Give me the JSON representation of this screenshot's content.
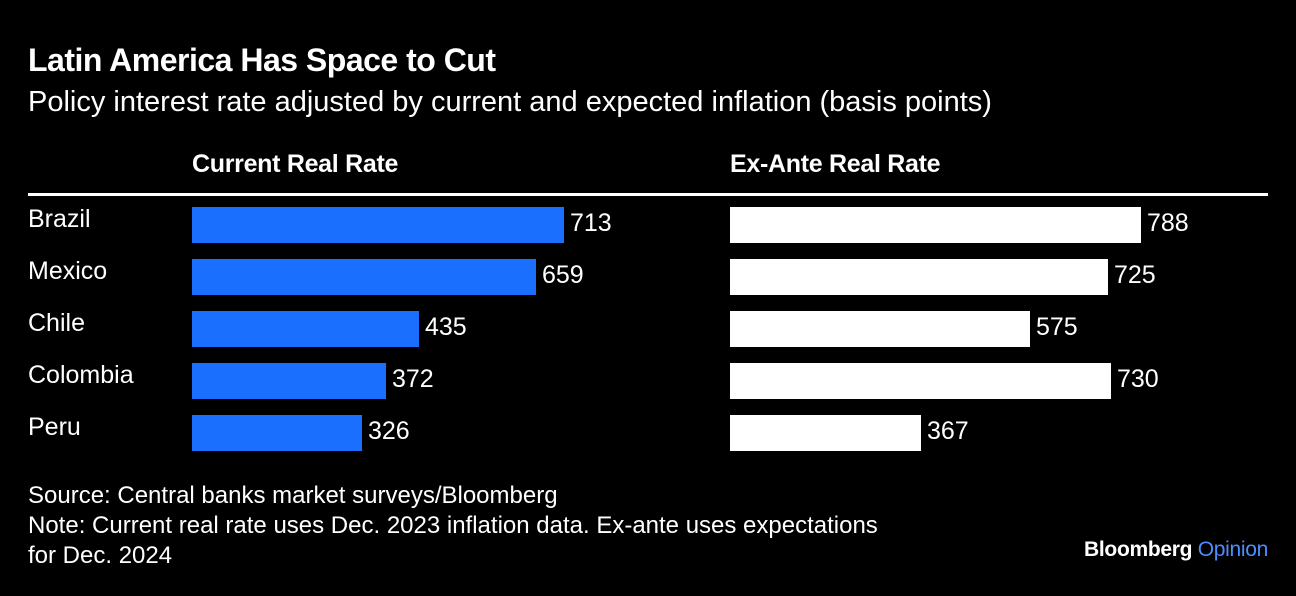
{
  "title": "Latin America Has Space to Cut",
  "subtitle": "Policy interest rate adjusted by current and expected inflation (basis points)",
  "footer": {
    "source": "Source: Central banks market surveys/Bloomberg",
    "note_line1": "Note: Current real rate uses Dec. 2023 inflation data. Ex-ante uses expectations",
    "note_line2": "for Dec. 2024",
    "brand_main": "Bloomberg",
    "brand_accent": "Opinion"
  },
  "colors": {
    "background": "#000000",
    "current_bar": "#1a6fff",
    "exante_bar": "#ffffff",
    "brand_accent": "#4c8dff"
  },
  "chart_data": {
    "type": "bar",
    "orientation": "horizontal",
    "title": "Latin America Has Space to Cut",
    "subtitle": "Policy interest rate adjusted by current and expected inflation (basis points)",
    "categories": [
      "Brazil",
      "Mexico",
      "Chile",
      "Colombia",
      "Peru"
    ],
    "series": [
      {
        "name": "Current Real Rate",
        "values": [
          713,
          659,
          435,
          372,
          326
        ]
      },
      {
        "name": "Ex-Ante Real Rate",
        "values": [
          788,
          725,
          575,
          730,
          367
        ]
      }
    ],
    "xlim": [
      0,
      800
    ]
  }
}
